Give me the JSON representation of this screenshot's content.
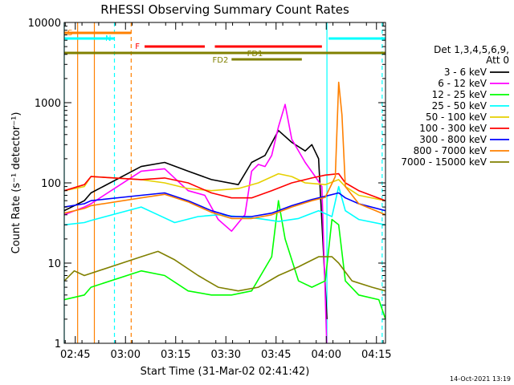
{
  "chart_data": {
    "type": "line",
    "title": "RHESSI Observing Summary Count Rates",
    "xlabel": "Start Time (31-Mar-02 02:41:42)",
    "ylabel": "Count Rate (s⁻¹ detector⁻¹)",
    "y_scale": "log",
    "ylim": [
      1,
      10000
    ],
    "xlim_minutes": [
      0,
      96
    ],
    "y_ticks": [
      {
        "value": 1,
        "label": "1"
      },
      {
        "value": 10,
        "label": "10"
      },
      {
        "value": 100,
        "label": "100"
      },
      {
        "value": 1000,
        "label": "1000"
      },
      {
        "value": 10000,
        "label": "10000"
      }
    ],
    "x_ticks": [
      {
        "minute": 3.3,
        "label": "02:45"
      },
      {
        "minute": 18.3,
        "label": "03:00"
      },
      {
        "minute": 33.3,
        "label": "03:15"
      },
      {
        "minute": 48.3,
        "label": "03:30"
      },
      {
        "minute": 63.3,
        "label": "03:45"
      },
      {
        "minute": 78.3,
        "label": "04:00"
      },
      {
        "minute": 93.3,
        "label": "04:15"
      }
    ],
    "legend": {
      "header": [
        "Det 1,3,4,5,6,9,",
        "Att 0"
      ],
      "position": "right"
    },
    "series": [
      {
        "name": "3 - 6 keV",
        "color": "#000000",
        "points": [
          [
            0,
            45
          ],
          [
            6,
            60
          ],
          [
            8,
            75
          ],
          [
            23,
            160
          ],
          [
            30,
            180
          ],
          [
            37,
            140
          ],
          [
            44,
            110
          ],
          [
            52,
            95
          ],
          [
            56,
            180
          ],
          [
            60,
            220
          ],
          [
            64,
            450
          ],
          [
            68,
            320
          ],
          [
            72,
            250
          ],
          [
            74,
            300
          ],
          [
            76,
            200
          ],
          [
            78.5,
            2
          ]
        ]
      },
      {
        "name": "6 - 12 keV",
        "color": "#ff00ff",
        "points": [
          [
            0,
            40
          ],
          [
            6,
            50
          ],
          [
            8,
            55
          ],
          [
            23,
            140
          ],
          [
            30,
            150
          ],
          [
            37,
            80
          ],
          [
            42,
            70
          ],
          [
            46,
            35
          ],
          [
            50,
            25
          ],
          [
            54,
            40
          ],
          [
            56,
            140
          ],
          [
            58,
            170
          ],
          [
            60,
            160
          ],
          [
            62,
            220
          ],
          [
            64,
            500
          ],
          [
            66,
            950
          ],
          [
            68,
            350
          ],
          [
            72,
            180
          ],
          [
            75,
            120
          ],
          [
            77,
            90
          ],
          [
            78.5,
            0.8
          ]
        ]
      },
      {
        "name": "12 - 25 keV",
        "color": "#00ff00",
        "points": [
          [
            0,
            3.5
          ],
          [
            6,
            4
          ],
          [
            8,
            5
          ],
          [
            23,
            8
          ],
          [
            30,
            7
          ],
          [
            37,
            4.5
          ],
          [
            44,
            4
          ],
          [
            50,
            4
          ],
          [
            56,
            4.5
          ],
          [
            62,
            12
          ],
          [
            64,
            60
          ],
          [
            66,
            20
          ],
          [
            70,
            6
          ],
          [
            74,
            5
          ],
          [
            78,
            6
          ],
          [
            80,
            35
          ],
          [
            82,
            30
          ],
          [
            84,
            6
          ],
          [
            88,
            4
          ],
          [
            94,
            3.5
          ],
          [
            96,
            2
          ]
        ]
      },
      {
        "name": "25 - 50 keV",
        "color": "#00ffff",
        "points": [
          [
            0,
            30
          ],
          [
            6,
            32
          ],
          [
            8,
            34
          ],
          [
            23,
            50
          ],
          [
            28,
            40
          ],
          [
            33,
            32
          ],
          [
            40,
            38
          ],
          [
            46,
            40
          ],
          [
            52,
            38
          ],
          [
            58,
            36
          ],
          [
            64,
            33
          ],
          [
            70,
            36
          ],
          [
            76,
            45
          ],
          [
            80,
            38
          ],
          [
            82,
            90
          ],
          [
            84,
            45
          ],
          [
            88,
            35
          ],
          [
            96,
            30
          ]
        ]
      },
      {
        "name": "50 - 100 keV",
        "color": "#e6d000",
        "points": [
          [
            0,
            80
          ],
          [
            6,
            90
          ],
          [
            8,
            120
          ],
          [
            23,
            110
          ],
          [
            30,
            100
          ],
          [
            37,
            85
          ],
          [
            44,
            80
          ],
          [
            52,
            85
          ],
          [
            58,
            100
          ],
          [
            64,
            130
          ],
          [
            68,
            120
          ],
          [
            72,
            100
          ],
          [
            78,
            95
          ],
          [
            82,
            110
          ],
          [
            84,
            90
          ],
          [
            88,
            70
          ],
          [
            96,
            60
          ]
        ]
      },
      {
        "name": "100 - 300 keV",
        "color": "#ff0000",
        "points": [
          [
            0,
            80
          ],
          [
            6,
            95
          ],
          [
            8,
            120
          ],
          [
            23,
            110
          ],
          [
            30,
            115
          ],
          [
            37,
            100
          ],
          [
            44,
            75
          ],
          [
            50,
            65
          ],
          [
            56,
            65
          ],
          [
            62,
            80
          ],
          [
            68,
            100
          ],
          [
            74,
            115
          ],
          [
            78,
            125
          ],
          [
            82,
            130
          ],
          [
            84,
            100
          ],
          [
            88,
            80
          ],
          [
            96,
            60
          ]
        ]
      },
      {
        "name": "300 - 800 keV",
        "color": "#0000ff",
        "points": [
          [
            0,
            50
          ],
          [
            6,
            55
          ],
          [
            8,
            60
          ],
          [
            23,
            70
          ],
          [
            30,
            75
          ],
          [
            37,
            60
          ],
          [
            44,
            45
          ],
          [
            50,
            38
          ],
          [
            56,
            38
          ],
          [
            62,
            42
          ],
          [
            68,
            52
          ],
          [
            74,
            62
          ],
          [
            78,
            68
          ],
          [
            82,
            75
          ],
          [
            84,
            65
          ],
          [
            88,
            55
          ],
          [
            96,
            45
          ]
        ]
      },
      {
        "name": "800 - 7000 keV",
        "color": "#ff8000",
        "points": [
          [
            0,
            42
          ],
          [
            6,
            48
          ],
          [
            8,
            52
          ],
          [
            23,
            65
          ],
          [
            30,
            72
          ],
          [
            37,
            58
          ],
          [
            44,
            43
          ],
          [
            50,
            36
          ],
          [
            56,
            36
          ],
          [
            62,
            40
          ],
          [
            68,
            50
          ],
          [
            74,
            60
          ],
          [
            78,
            66
          ],
          [
            81,
            120
          ],
          [
            82,
            1800
          ],
          [
            83,
            700
          ],
          [
            84,
            90
          ],
          [
            88,
            55
          ],
          [
            96,
            40
          ]
        ]
      },
      {
        "name": "7000 - 15000 keV",
        "color": "#808000",
        "points": [
          [
            0,
            6
          ],
          [
            3,
            8
          ],
          [
            6,
            7
          ],
          [
            23,
            12
          ],
          [
            28,
            14
          ],
          [
            33,
            11
          ],
          [
            40,
            7
          ],
          [
            46,
            5
          ],
          [
            52,
            4.5
          ],
          [
            58,
            5
          ],
          [
            64,
            7
          ],
          [
            70,
            9
          ],
          [
            76,
            12
          ],
          [
            80,
            12
          ],
          [
            82,
            10
          ],
          [
            86,
            6
          ],
          [
            92,
            5
          ],
          [
            96,
            4.5
          ]
        ]
      }
    ],
    "annotations": {
      "bars": [
        {
          "label": "S",
          "color": "#ff8000",
          "start": 0,
          "end": 20
        },
        {
          "label": "N",
          "color": "#00ffff",
          "start": 0,
          "end": 15
        },
        {
          "label": "",
          "color": "#00ffff",
          "start": 79,
          "end": 96
        },
        {
          "label": "F",
          "color": "#ff0000",
          "start": 24,
          "end": 42
        },
        {
          "label": "",
          "color": "#ff0000",
          "start": 45,
          "end": 77
        },
        {
          "label": "FD1",
          "color": "#808000",
          "start": 0,
          "end": 96
        },
        {
          "label": "FD2",
          "color": "#808000",
          "start": 50,
          "end": 71
        }
      ],
      "vlines": [
        {
          "minute": 0,
          "color": "#00ffff",
          "style": "solid"
        },
        {
          "minute": 4,
          "color": "#ff8000",
          "style": "solid"
        },
        {
          "minute": 9,
          "color": "#ff8000",
          "style": "solid"
        },
        {
          "minute": 15,
          "color": "#00ffff",
          "style": "dashed"
        },
        {
          "minute": 20,
          "color": "#ff8000",
          "style": "dashed"
        },
        {
          "minute": 78.5,
          "color": "#00ffff",
          "style": "solid"
        },
        {
          "minute": 95,
          "color": "#00ffff",
          "style": "dashed"
        }
      ]
    }
  },
  "footer": {
    "timestamp": "14-Oct-2021 13:19"
  }
}
